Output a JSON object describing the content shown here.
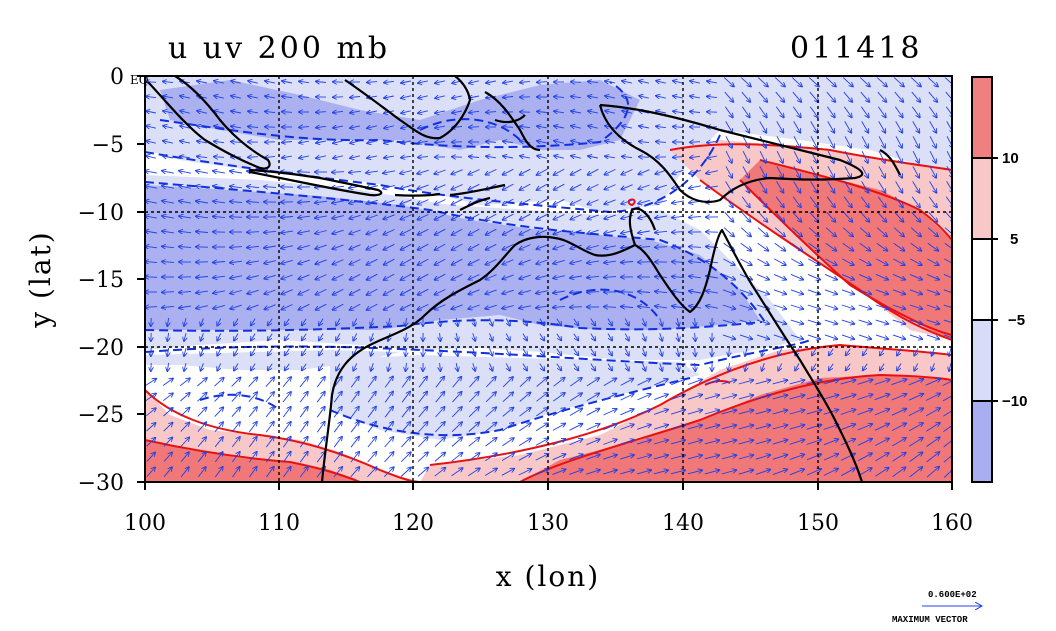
{
  "title": {
    "left": "u uv 200 mb",
    "right": "011418"
  },
  "eq_label": "EQ",
  "x_axis": {
    "label": "x (lon)",
    "ticks": [
      "100",
      "110",
      "120",
      "130",
      "140",
      "150",
      "160"
    ],
    "range": [
      100,
      160
    ]
  },
  "y_axis": {
    "label": "y (lat)",
    "ticks": [
      "0",
      "−5",
      "−10",
      "−15",
      "−20",
      "−25",
      "−30"
    ],
    "range": [
      -30,
      0
    ]
  },
  "colorbar": {
    "labels": [
      "10",
      "5",
      "−5",
      "−10"
    ],
    "colors": [
      "#f08080",
      "#f8c8c8",
      "#ffffff",
      "#d8dcf8",
      "#a8aef0"
    ]
  },
  "vector_legend": {
    "value": "0.600E+02",
    "label": "MAXIMUM VECTOR"
  },
  "colors": {
    "strong_westerly": "#f07878",
    "weak_westerly": "#f8c8c8",
    "weak_easterly": "#dcdff8",
    "strong_easterly": "#aab0f0",
    "positive_contour": "#e81010",
    "negative_contour": "#1030e0",
    "vectors": "#2040e8",
    "coastline": "#000000"
  },
  "map_icons": [
    "coastline-icon",
    "wind-vector-icon",
    "contour-line-icon"
  ]
}
